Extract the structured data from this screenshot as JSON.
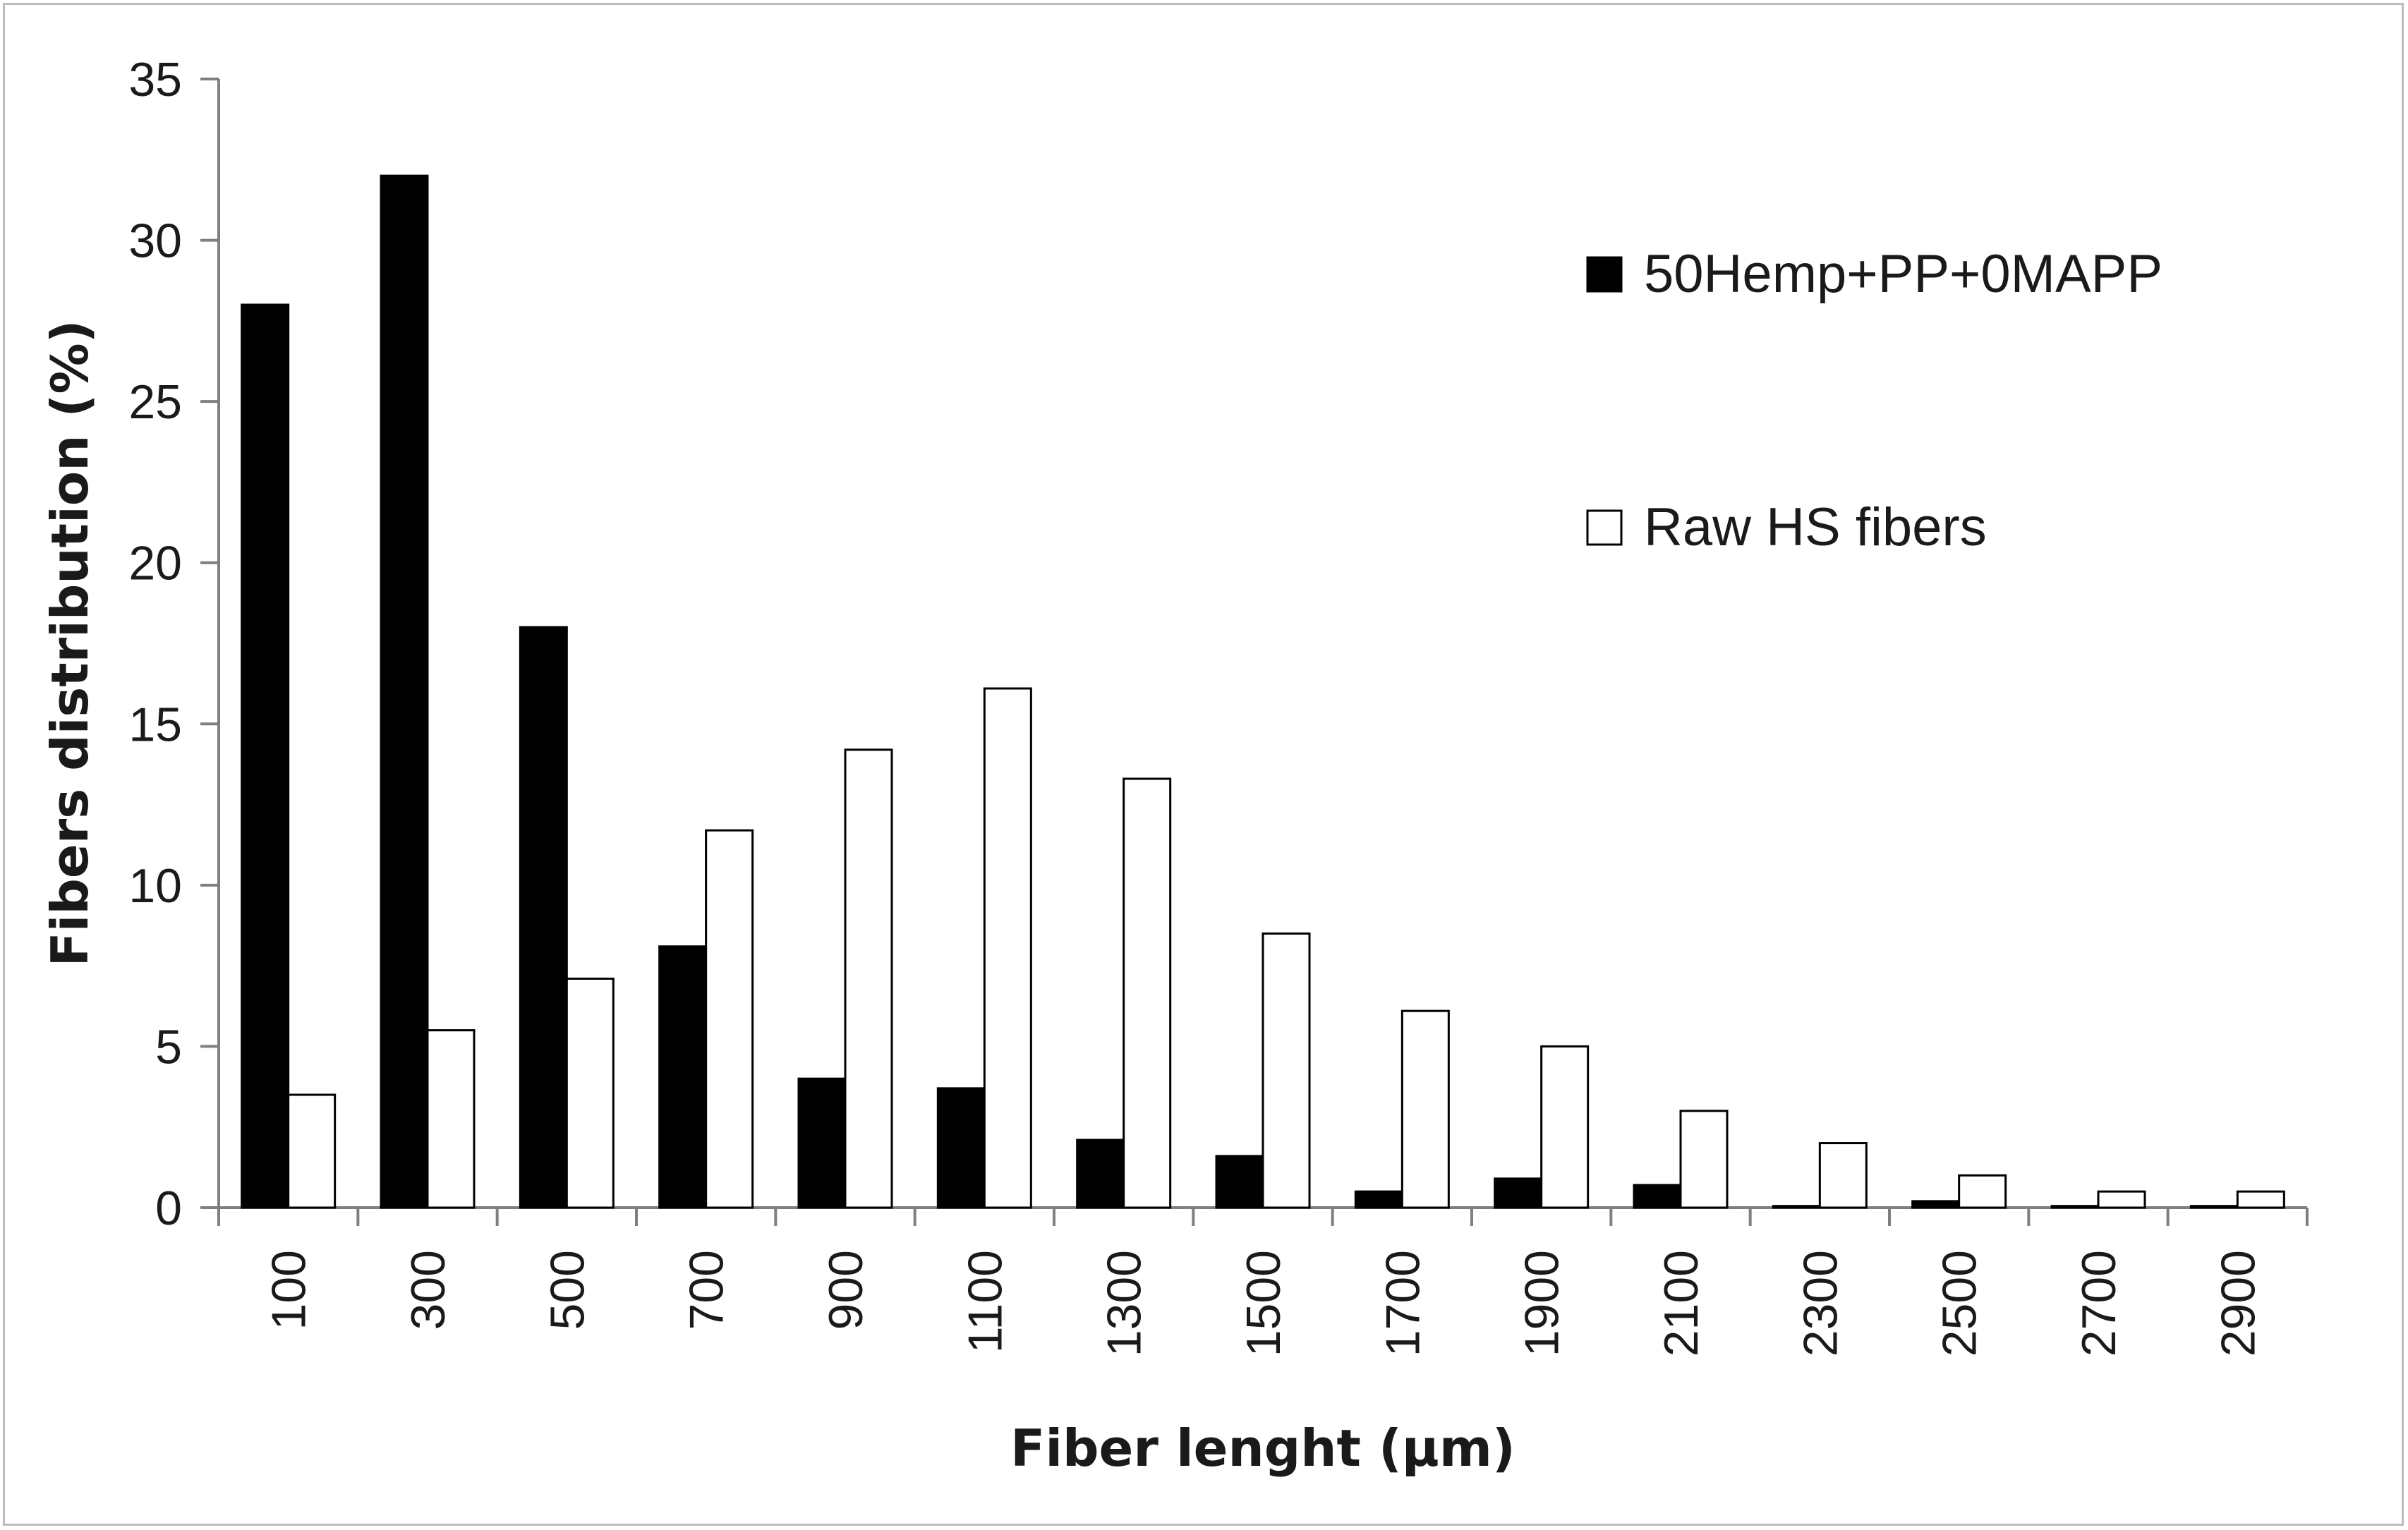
{
  "chart_data": {
    "type": "bar",
    "title": "",
    "xlabel": "Fiber lenght (µm)",
    "ylabel": "Fibers distribution (%)",
    "ylim": [
      0,
      35
    ],
    "yticks": [
      0,
      5,
      10,
      15,
      20,
      25,
      30,
      35
    ],
    "grid": false,
    "legend_position": "top-right",
    "categories": [
      "100",
      "300",
      "500",
      "700",
      "900",
      "1100",
      "1300",
      "1500",
      "1700",
      "1900",
      "2100",
      "2300",
      "2500",
      "2700",
      "2900"
    ],
    "series": [
      {
        "name": "50Hemp+PP+0MAPP",
        "color": "#000000",
        "values": [
          28,
          32,
          18,
          8.1,
          4,
          3.7,
          2.1,
          1.6,
          0.5,
          0.9,
          0.7,
          0.05,
          0.2,
          0.05,
          0.05
        ]
      },
      {
        "name": "Raw HS fibers",
        "color": "#ffffff",
        "values": [
          3.5,
          5.5,
          7.1,
          11.7,
          14.2,
          16.1,
          13.3,
          8.5,
          6.1,
          5.0,
          3.0,
          2.0,
          1.0,
          0.5,
          0.5
        ]
      }
    ]
  }
}
